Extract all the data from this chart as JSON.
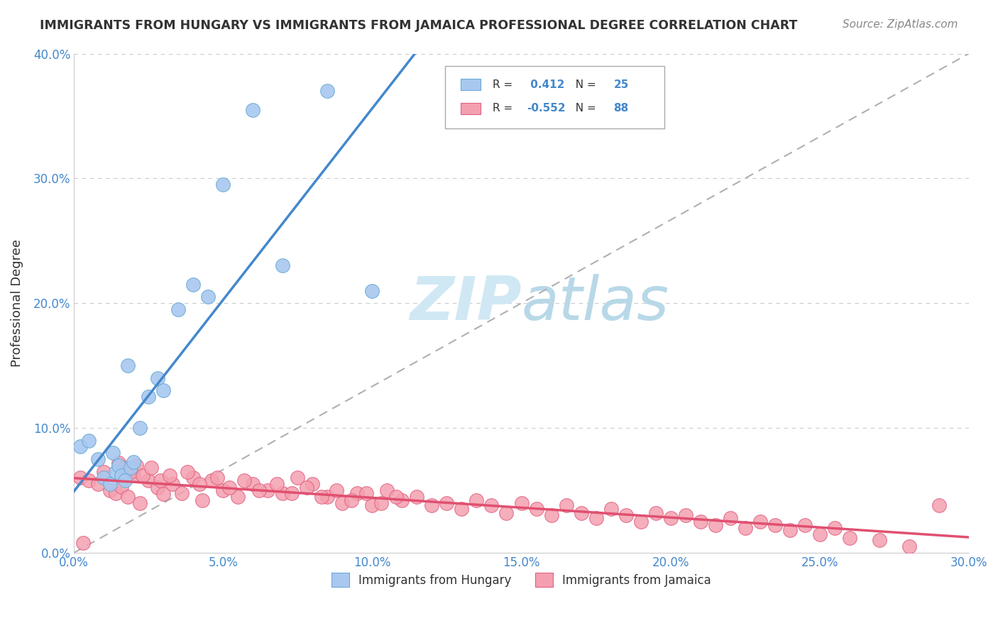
{
  "title": "IMMIGRANTS FROM HUNGARY VS IMMIGRANTS FROM JAMAICA PROFESSIONAL DEGREE CORRELATION CHART",
  "source": "Source: ZipAtlas.com",
  "ylabel": "Professional Degree",
  "xlim": [
    0,
    0.3
  ],
  "ylim": [
    0,
    0.4
  ],
  "xticks": [
    0.0,
    0.05,
    0.1,
    0.15,
    0.2,
    0.25,
    0.3
  ],
  "yticks": [
    0.0,
    0.1,
    0.2,
    0.3,
    0.4
  ],
  "hungary_color": "#a8c8f0",
  "jamaica_color": "#f4a0b0",
  "hungary_edge": "#6aaad4",
  "jamaica_edge": "#e06080",
  "hungary_line_color": "#4488cc",
  "jamaica_line_color": "#e05070",
  "hungary_R": 0.412,
  "hungary_N": 25,
  "jamaica_R": -0.552,
  "jamaica_N": 88,
  "hungary_scatter_x": [
    0.002,
    0.005,
    0.008,
    0.01,
    0.012,
    0.013,
    0.014,
    0.015,
    0.016,
    0.017,
    0.018,
    0.019,
    0.02,
    0.022,
    0.025,
    0.028,
    0.03,
    0.035,
    0.04,
    0.045,
    0.05,
    0.06,
    0.07,
    0.085,
    0.1
  ],
  "hungary_scatter_y": [
    0.085,
    0.09,
    0.075,
    0.06,
    0.055,
    0.08,
    0.065,
    0.07,
    0.062,
    0.058,
    0.15,
    0.068,
    0.073,
    0.1,
    0.125,
    0.14,
    0.13,
    0.195,
    0.215,
    0.205,
    0.295,
    0.355,
    0.23,
    0.37,
    0.21
  ],
  "jamaica_scatter_x": [
    0.002,
    0.005,
    0.008,
    0.01,
    0.012,
    0.014,
    0.016,
    0.018,
    0.02,
    0.022,
    0.025,
    0.028,
    0.03,
    0.033,
    0.036,
    0.04,
    0.043,
    0.046,
    0.05,
    0.055,
    0.06,
    0.065,
    0.07,
    0.075,
    0.08,
    0.085,
    0.09,
    0.095,
    0.1,
    0.105,
    0.11,
    0.115,
    0.12,
    0.125,
    0.13,
    0.135,
    0.14,
    0.145,
    0.15,
    0.155,
    0.16,
    0.165,
    0.17,
    0.175,
    0.18,
    0.185,
    0.19,
    0.195,
    0.2,
    0.205,
    0.21,
    0.215,
    0.22,
    0.225,
    0.23,
    0.235,
    0.24,
    0.245,
    0.25,
    0.255,
    0.26,
    0.27,
    0.28,
    0.015,
    0.017,
    0.019,
    0.021,
    0.023,
    0.026,
    0.029,
    0.032,
    0.038,
    0.042,
    0.048,
    0.052,
    0.057,
    0.062,
    0.068,
    0.073,
    0.078,
    0.083,
    0.088,
    0.093,
    0.098,
    0.103,
    0.108,
    0.29,
    0.003
  ],
  "jamaica_scatter_y": [
    0.06,
    0.058,
    0.055,
    0.065,
    0.05,
    0.048,
    0.053,
    0.045,
    0.062,
    0.04,
    0.058,
    0.052,
    0.047,
    0.055,
    0.048,
    0.06,
    0.042,
    0.058,
    0.05,
    0.045,
    0.055,
    0.05,
    0.048,
    0.06,
    0.055,
    0.045,
    0.04,
    0.048,
    0.038,
    0.05,
    0.042,
    0.045,
    0.038,
    0.04,
    0.035,
    0.042,
    0.038,
    0.032,
    0.04,
    0.035,
    0.03,
    0.038,
    0.032,
    0.028,
    0.035,
    0.03,
    0.025,
    0.032,
    0.028,
    0.03,
    0.025,
    0.022,
    0.028,
    0.02,
    0.025,
    0.022,
    0.018,
    0.022,
    0.015,
    0.02,
    0.012,
    0.01,
    0.005,
    0.072,
    0.068,
    0.065,
    0.07,
    0.062,
    0.068,
    0.058,
    0.062,
    0.065,
    0.055,
    0.06,
    0.052,
    0.058,
    0.05,
    0.055,
    0.048,
    0.052,
    0.045,
    0.05,
    0.042,
    0.048,
    0.04,
    0.045,
    0.038,
    0.008
  ],
  "background_color": "#ffffff",
  "grid_color": "#cccccc",
  "watermark_zip": "ZIP",
  "watermark_atlas": "atlas",
  "watermark_color": "#d0e8f4"
}
